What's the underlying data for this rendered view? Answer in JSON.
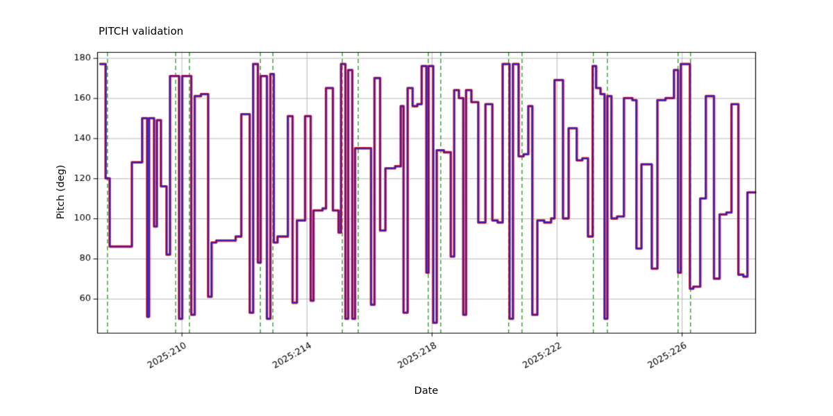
{
  "title": "PITCH validation",
  "chart_data": {
    "type": "line",
    "step_mode": "post",
    "title": "PITCH validation",
    "xlabel": "Date",
    "ylabel": "Pitch (deg)",
    "xlim": [
      207.3,
      228.35
    ],
    "ylim": [
      43,
      183
    ],
    "grid": true,
    "legend": "none",
    "xticks": [
      {
        "value": 210,
        "label": "2025:210"
      },
      {
        "value": 214,
        "label": "2025:214"
      },
      {
        "value": 218,
        "label": "2025:218"
      },
      {
        "value": 222,
        "label": "2025:222"
      },
      {
        "value": 226,
        "label": "2025:226"
      }
    ],
    "yticks": [
      {
        "value": 60,
        "label": "60"
      },
      {
        "value": 80,
        "label": "80"
      },
      {
        "value": 100,
        "label": "100"
      },
      {
        "value": 120,
        "label": "120"
      },
      {
        "value": 140,
        "label": "140"
      },
      {
        "value": 160,
        "label": "160"
      },
      {
        "value": 180,
        "label": "180"
      }
    ],
    "colors": {
      "line_core": "#2020cc",
      "line_edge": "#e02020",
      "vline": "#2e9e2e",
      "grid": "#b0b0b0",
      "frame": "#000000",
      "text": "#000000",
      "background": "#ffffff"
    },
    "vlines": [
      207.63,
      209.81,
      210.25,
      212.52,
      212.92,
      215.14,
      215.65,
      217.89,
      218.29,
      220.46,
      220.89,
      223.17,
      223.62,
      225.88,
      226.28
    ],
    "steps": [
      [
        207.4,
        177
      ],
      [
        207.57,
        120
      ],
      [
        207.7,
        86
      ],
      [
        208.41,
        128
      ],
      [
        208.74,
        150
      ],
      [
        208.9,
        51
      ],
      [
        208.96,
        150
      ],
      [
        209.12,
        96
      ],
      [
        209.21,
        149
      ],
      [
        209.34,
        116
      ],
      [
        209.52,
        82
      ],
      [
        209.63,
        171
      ],
      [
        209.92,
        50
      ],
      [
        210.02,
        171
      ],
      [
        210.31,
        52
      ],
      [
        210.42,
        161
      ],
      [
        210.62,
        162
      ],
      [
        210.85,
        61
      ],
      [
        210.96,
        88
      ],
      [
        211.11,
        89
      ],
      [
        211.73,
        91
      ],
      [
        211.91,
        152
      ],
      [
        212.18,
        53
      ],
      [
        212.29,
        177
      ],
      [
        212.44,
        78
      ],
      [
        212.53,
        171
      ],
      [
        212.73,
        50
      ],
      [
        212.84,
        172
      ],
      [
        212.95,
        88
      ],
      [
        213.07,
        91
      ],
      [
        213.4,
        151
      ],
      [
        213.55,
        58
      ],
      [
        213.69,
        99
      ],
      [
        213.95,
        151
      ],
      [
        214.13,
        59
      ],
      [
        214.22,
        104
      ],
      [
        214.51,
        105
      ],
      [
        214.62,
        165
      ],
      [
        214.84,
        104
      ],
      [
        215.02,
        93
      ],
      [
        215.1,
        177
      ],
      [
        215.24,
        50
      ],
      [
        215.33,
        174
      ],
      [
        215.46,
        50
      ],
      [
        215.55,
        135
      ],
      [
        216.06,
        57
      ],
      [
        216.17,
        170
      ],
      [
        216.35,
        94
      ],
      [
        216.52,
        125
      ],
      [
        216.83,
        126
      ],
      [
        217.01,
        156
      ],
      [
        217.1,
        53
      ],
      [
        217.23,
        165
      ],
      [
        217.39,
        156
      ],
      [
        217.54,
        157
      ],
      [
        217.68,
        176
      ],
      [
        217.83,
        73
      ],
      [
        217.9,
        176
      ],
      [
        218.05,
        48
      ],
      [
        218.16,
        134
      ],
      [
        218.39,
        133
      ],
      [
        218.61,
        81
      ],
      [
        218.72,
        164
      ],
      [
        218.87,
        160
      ],
      [
        219.01,
        52
      ],
      [
        219.1,
        164
      ],
      [
        219.27,
        158
      ],
      [
        219.49,
        98
      ],
      [
        219.72,
        157
      ],
      [
        219.94,
        99
      ],
      [
        220.11,
        98
      ],
      [
        220.27,
        177
      ],
      [
        220.49,
        50
      ],
      [
        220.6,
        177
      ],
      [
        220.78,
        131
      ],
      [
        220.94,
        132
      ],
      [
        221.09,
        156
      ],
      [
        221.22,
        52
      ],
      [
        221.38,
        99
      ],
      [
        221.6,
        98
      ],
      [
        221.82,
        100
      ],
      [
        221.93,
        169
      ],
      [
        222.2,
        100
      ],
      [
        222.38,
        145
      ],
      [
        222.64,
        129
      ],
      [
        222.82,
        130
      ],
      [
        223.0,
        91
      ],
      [
        223.15,
        176
      ],
      [
        223.26,
        165
      ],
      [
        223.4,
        162
      ],
      [
        223.53,
        50
      ],
      [
        223.62,
        161
      ],
      [
        223.75,
        100
      ],
      [
        223.93,
        101
      ],
      [
        224.15,
        160
      ],
      [
        224.42,
        159
      ],
      [
        224.55,
        85
      ],
      [
        224.71,
        127
      ],
      [
        225.04,
        75
      ],
      [
        225.22,
        159
      ],
      [
        225.48,
        160
      ],
      [
        225.75,
        174
      ],
      [
        225.88,
        73
      ],
      [
        225.97,
        177
      ],
      [
        226.26,
        65
      ],
      [
        226.37,
        66
      ],
      [
        226.59,
        110
      ],
      [
        226.77,
        161
      ],
      [
        227.03,
        70
      ],
      [
        227.21,
        102
      ],
      [
        227.43,
        103
      ],
      [
        227.59,
        157
      ],
      [
        227.81,
        72
      ],
      [
        227.97,
        71
      ],
      [
        228.1,
        113
      ]
    ]
  }
}
